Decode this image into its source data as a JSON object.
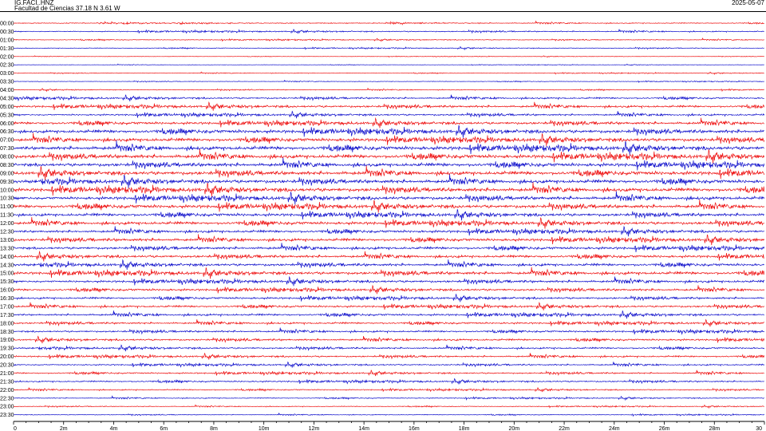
{
  "header": {
    "station_code": "IG.FACI..HNZ",
    "station_desc": "Facultad de Ciencias  37.18 N 3.61 W",
    "date": "2025-05-07"
  },
  "colors": {
    "trace_a": "#ee1111",
    "trace_b": "#1111cc",
    "axis": "#000000"
  },
  "chart_data": {
    "type": "line",
    "title": "IG.FACI..HNZ",
    "subtitle": "Facultad de Ciencias  37.18 N 3.61 W",
    "xlabel": "",
    "ylabel": "",
    "x_unit": "m",
    "xlim": [
      0,
      30
    ],
    "x_ticks": [
      "0",
      "2m",
      "4m",
      "6m",
      "8m",
      "10m",
      "12m",
      "14m",
      "16m",
      "18m",
      "20m",
      "22m",
      "24m",
      "26m",
      "28m",
      "30"
    ],
    "grid": false,
    "legend": "none",
    "row_labels": [
      "00:00",
      "00:30",
      "01:00",
      "01:30",
      "02:00",
      "02:30",
      "03:00",
      "03:30",
      "04:00",
      "04:30",
      "05:00",
      "05:30",
      "06:00",
      "06:30",
      "07:00",
      "07:30",
      "08:00",
      "08:30",
      "09:00",
      "09:30",
      "10:00",
      "10:30",
      "11:00",
      "11:30",
      "12:00",
      "12:30",
      "13:00",
      "13:30",
      "14:00",
      "14:30",
      "15:00",
      "15:30",
      "16:00",
      "16:30",
      "17:00",
      "17:30",
      "18:00",
      "18:30",
      "19:00",
      "19:30",
      "20:00",
      "20:30",
      "21:00",
      "21:30",
      "22:00",
      "22:30",
      "23:00",
      "23:30"
    ],
    "row_colors": [
      "red",
      "blue",
      "red",
      "blue",
      "red",
      "blue",
      "red",
      "blue",
      "red",
      "blue",
      "red",
      "blue",
      "red",
      "blue",
      "red",
      "blue",
      "red",
      "blue",
      "red",
      "blue",
      "red",
      "blue",
      "red",
      "blue",
      "red",
      "blue",
      "red",
      "blue",
      "red",
      "blue",
      "red",
      "blue",
      "red",
      "blue",
      "red",
      "blue",
      "red",
      "blue",
      "red",
      "blue",
      "red",
      "blue",
      "red",
      "blue",
      "red",
      "blue",
      "red",
      "blue"
    ],
    "row_amplitude": [
      0.25,
      0.3,
      0.2,
      0.2,
      0.1,
      0.1,
      0.15,
      0.15,
      0.2,
      0.45,
      0.6,
      0.5,
      0.7,
      0.9,
      0.9,
      1.0,
      1.0,
      0.95,
      1.0,
      0.95,
      1.0,
      0.9,
      0.9,
      0.8,
      0.8,
      0.7,
      0.75,
      0.7,
      0.7,
      0.7,
      0.8,
      0.65,
      0.6,
      0.55,
      0.55,
      0.55,
      0.5,
      0.5,
      0.5,
      0.45,
      0.45,
      0.4,
      0.4,
      0.4,
      0.3,
      0.25,
      0.2,
      0.2
    ]
  }
}
